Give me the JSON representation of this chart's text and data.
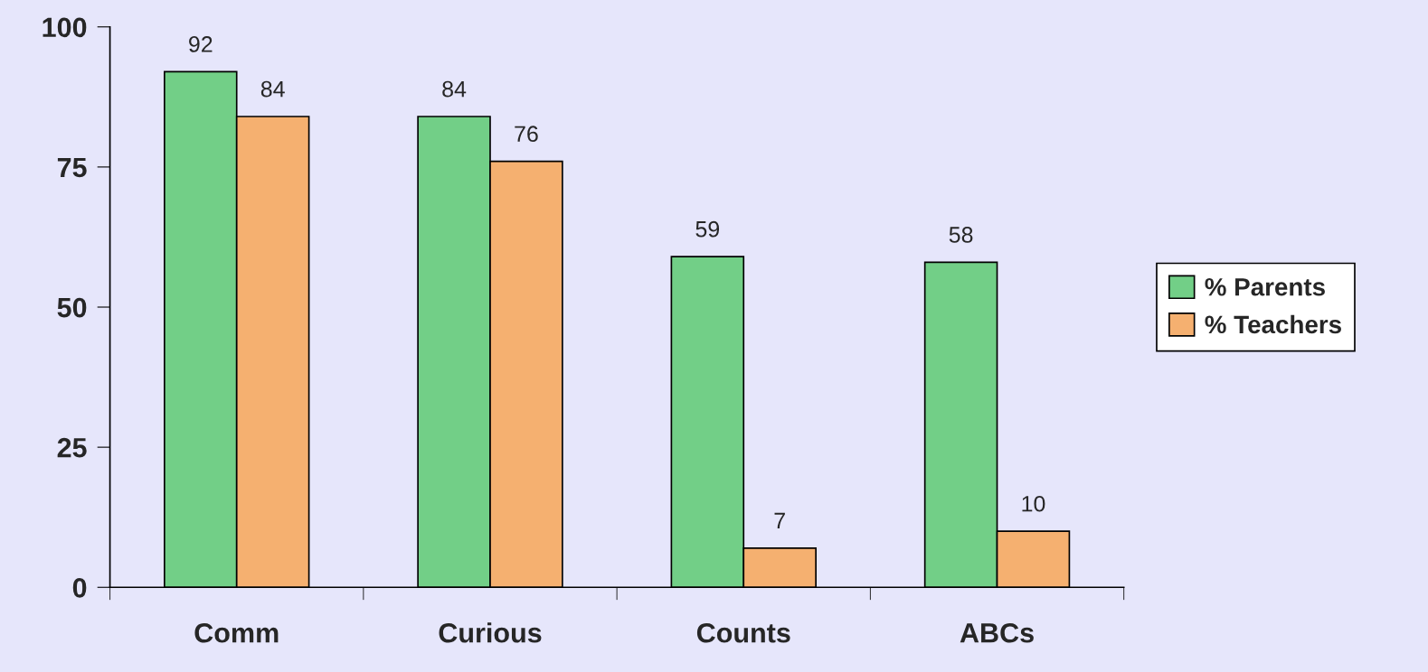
{
  "chart_data": {
    "type": "bar",
    "categories": [
      "Comm",
      "Curious",
      "Counts",
      "ABCs"
    ],
    "series": [
      {
        "name": "% Parents",
        "color": "#72cf87",
        "values": [
          92,
          84,
          59,
          58
        ]
      },
      {
        "name": "% Teachers",
        "color": "#f5b070",
        "values": [
          84,
          76,
          7,
          10
        ]
      }
    ],
    "ylim": [
      0,
      100
    ],
    "yticks": [
      0,
      25,
      50,
      75,
      100
    ],
    "data_labels": true,
    "grid": false,
    "legend": "right"
  }
}
